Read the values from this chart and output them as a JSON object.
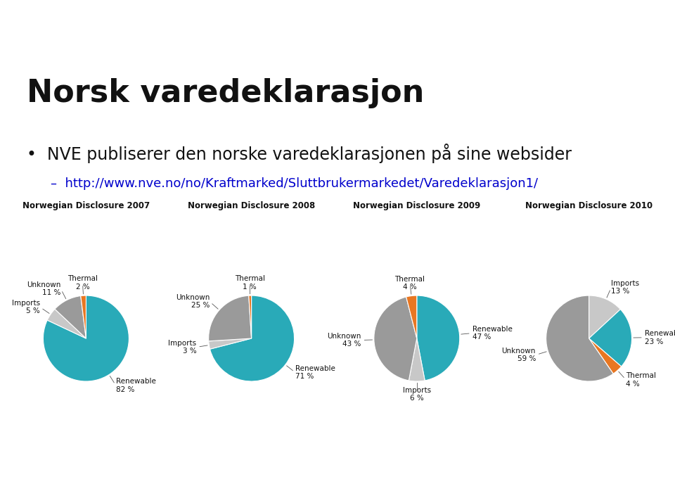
{
  "title": "Norsk varedeklarasjon",
  "bullet": "NVE publiserer den norske varedeklarasjonen på sine websider",
  "link": "http://www.nve.no/no/Kraftmarked/Sluttbrukermarkedet/Varedeklarasjon1/",
  "charts": [
    {
      "title": "Norwegian Disclosure 2007",
      "labels": [
        "Renewable",
        "Imports",
        "Unknown",
        "Thermal"
      ],
      "values": [
        82,
        5,
        11,
        2
      ],
      "colors": [
        "#29AAB8",
        "#C8C8C8",
        "#9A9A9A",
        "#E87722"
      ],
      "startangle": 90,
      "counterclock": false
    },
    {
      "title": "Norwegian Disclosure 2008",
      "labels": [
        "Renewable",
        "Imports",
        "Unknown",
        "Thermal"
      ],
      "values": [
        71,
        3,
        25,
        1
      ],
      "colors": [
        "#29AAB8",
        "#C8C8C8",
        "#9A9A9A",
        "#E87722"
      ],
      "startangle": 90,
      "counterclock": false
    },
    {
      "title": "Norwegian Disclosure 2009",
      "labels": [
        "Renewable",
        "Imports",
        "Unknown",
        "Thermal"
      ],
      "values": [
        47,
        6,
        43,
        4
      ],
      "colors": [
        "#29AAB8",
        "#C8C8C8",
        "#9A9A9A",
        "#E87722"
      ],
      "startangle": 90,
      "counterclock": false
    },
    {
      "title": "Norwegian Disclosure 2010",
      "labels": [
        "Imports",
        "Renewable",
        "Thermal",
        "Unknown"
      ],
      "values": [
        13,
        23,
        4,
        59
      ],
      "colors": [
        "#C8C8C8",
        "#29AAB8",
        "#E87722",
        "#9A9A9A"
      ],
      "startangle": 90,
      "counterclock": false
    }
  ],
  "background_color": "#ffffff",
  "title_fontsize": 32,
  "bullet_fontsize": 17,
  "link_fontsize": 13,
  "chart_title_fontsize": 8.5,
  "pie_label_fontsize": 7.5
}
